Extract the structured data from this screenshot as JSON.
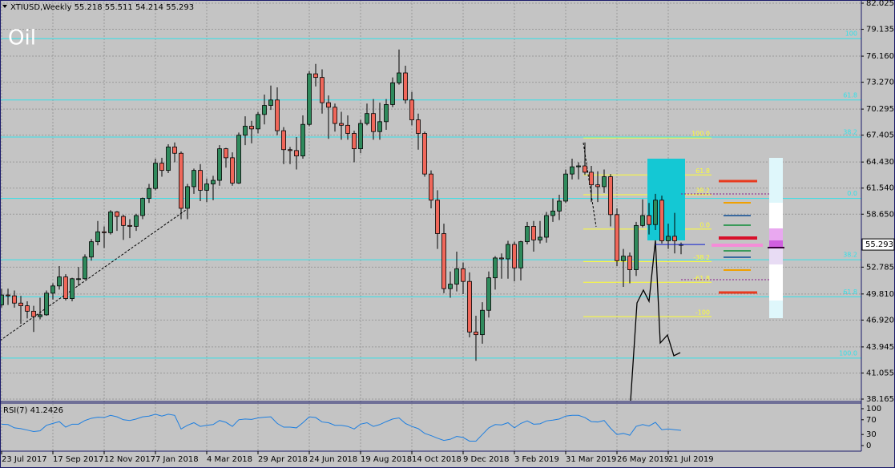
{
  "chart_data": {
    "type": "candlestick",
    "symbol": "XTIUSD,Weekly",
    "watermark": "Oil",
    "categories": [
      "23 Jul 2017",
      null,
      null,
      null,
      null,
      null,
      null,
      null,
      "17 Sep 2017",
      null,
      null,
      null,
      null,
      null,
      null,
      null,
      "12 Nov 2017",
      null,
      null,
      null,
      null,
      null,
      null,
      null,
      "7 Jan 2018",
      null,
      null,
      null,
      null,
      null,
      null,
      null,
      "4 Mar 2018",
      null,
      null,
      null,
      null,
      null,
      null,
      null,
      "29 Apr 2018",
      null,
      null,
      null,
      null,
      null,
      null,
      null,
      "24 Jun 2018",
      null,
      null,
      null,
      null,
      null,
      null,
      null,
      "19 Aug 2018",
      null,
      null,
      null,
      null,
      null,
      null,
      null,
      "14 Oct 2018",
      null,
      null,
      null,
      null,
      null,
      null,
      null,
      "9 Dec 2018",
      null,
      null,
      null,
      null,
      null,
      null,
      null,
      "3 Feb 2019",
      null,
      null,
      null,
      null,
      null,
      null,
      null,
      "31 Mar 2019",
      null,
      null,
      null,
      null,
      null,
      null,
      null,
      "26 May 2019",
      null,
      null,
      null,
      null,
      null,
      null,
      null,
      "21 Jul 2019",
      null,
      null
    ],
    "open": [
      48.6,
      49.7,
      49.6,
      48.8,
      48.5,
      47.9,
      47.3,
      47.5,
      49.9,
      50.7,
      51.7,
      49.3,
      51.5,
      51.5,
      53.9,
      55.6,
      56.7,
      56.6,
      58.9,
      58.4,
      57.4,
      57.3,
      58.5,
      60.4,
      61.5,
      64.3,
      63.5,
      66.1,
      65.4,
      59.3,
      61.7,
      63.5,
      61.3,
      62.0,
      62.4,
      65.9,
      64.9,
      62.1,
      67.4,
      68.4,
      68.1,
      69.7,
      70.7,
      71.3,
      67.9,
      65.8,
      65.7,
      65.1,
      68.6,
      74.2,
      73.8,
      71.0,
      70.5,
      68.7,
      68.5,
      67.6,
      65.9,
      68.7,
      69.8,
      67.8,
      68.9,
      70.8,
      73.2,
      74.3,
      71.3,
      69.1,
      67.6,
      63.1,
      60.2,
      56.5,
      50.4,
      50.9,
      52.6,
      51.2,
      45.6,
      45.3,
      48.0,
      51.6,
      53.8,
      53.7,
      55.3,
      52.7,
      55.6,
      57.3,
      55.8,
      56.1,
      58.5,
      59.0,
      60.1,
      63.1,
      63.9,
      64.0,
      63.3,
      61.9,
      61.7,
      62.8,
      58.6,
      53.5,
      54.0,
      52.5,
      57.4,
      58.5,
      57.5,
      60.2,
      55.7,
      56.2,
      55.218
    ],
    "high": [
      50.4,
      50.4,
      50.2,
      49.6,
      49.0,
      48.5,
      49.4,
      50.2,
      51.0,
      52.9,
      52.0,
      51.6,
      52.8,
      54.2,
      55.9,
      57.9,
      57.3,
      59.1,
      59.0,
      58.6,
      58.1,
      58.7,
      60.5,
      62.0,
      64.8,
      64.9,
      66.4,
      66.6,
      65.6,
      62.0,
      63.7,
      64.2,
      62.6,
      62.9,
      66.3,
      66.0,
      65.5,
      67.7,
      69.5,
      69.0,
      70.0,
      71.9,
      72.9,
      72.7,
      68.3,
      66.1,
      67.2,
      69.6,
      74.5,
      75.3,
      74.7,
      71.8,
      70.9,
      70.0,
      69.6,
      67.9,
      69.1,
      70.9,
      71.4,
      71.0,
      71.4,
      73.8,
      76.9,
      75.1,
      72.2,
      69.8,
      67.8,
      63.5,
      61.3,
      57.6,
      52.3,
      54.5,
      53.3,
      52.2,
      47.4,
      48.9,
      52.3,
      54.0,
      54.3,
      55.7,
      55.6,
      55.7,
      57.8,
      57.9,
      57.9,
      58.9,
      60.4,
      60.8,
      63.6,
      64.8,
      64.4,
      66.6,
      64.0,
      63.4,
      63.6,
      63.1,
      59.3,
      54.8,
      54.4,
      57.8,
      60.3,
      59.9,
      60.9,
      60.7,
      57.6,
      58.8,
      55.511
    ],
    "low": [
      48.3,
      48.6,
      48.3,
      46.5,
      47.1,
      45.6,
      47.0,
      47.4,
      49.2,
      50.3,
      49.1,
      49.0,
      50.7,
      51.4,
      53.5,
      55.2,
      54.9,
      56.4,
      56.8,
      55.8,
      56.0,
      56.8,
      58.1,
      59.9,
      61.3,
      62.8,
      63.2,
      64.4,
      58.1,
      58.1,
      60.9,
      60.1,
      60.0,
      60.2,
      61.8,
      63.8,
      61.8,
      62.0,
      66.3,
      66.5,
      67.6,
      68.6,
      70.2,
      67.4,
      64.2,
      64.2,
      63.6,
      64.8,
      68.4,
      72.8,
      69.8,
      67.0,
      67.8,
      66.9,
      66.9,
      64.4,
      65.4,
      68.5,
      66.9,
      66.9,
      68.0,
      70.5,
      73.0,
      70.9,
      68.5,
      65.8,
      62.8,
      59.3,
      54.8,
      49.9,
      49.4,
      50.1,
      49.8,
      45.0,
      42.4,
      44.3,
      47.2,
      50.3,
      51.5,
      51.5,
      51.2,
      51.3,
      55.3,
      54.5,
      55.4,
      55.5,
      57.8,
      58.0,
      59.9,
      62.5,
      62.5,
      63.0,
      60.0,
      60.0,
      61.0,
      57.3,
      52.9,
      50.6,
      51.0,
      51.8,
      57.2,
      56.4,
      56.9,
      55.4,
      54.8,
      54.3,
      54.214
    ],
    "close": [
      49.7,
      49.6,
      48.8,
      48.5,
      47.9,
      47.3,
      47.5,
      49.9,
      50.7,
      51.7,
      49.3,
      51.5,
      51.5,
      53.9,
      55.6,
      56.7,
      56.6,
      58.9,
      58.4,
      57.4,
      57.3,
      58.5,
      60.4,
      61.5,
      64.3,
      63.5,
      66.1,
      65.4,
      59.3,
      61.7,
      63.5,
      61.3,
      62.0,
      62.4,
      65.9,
      64.9,
      62.1,
      67.4,
      68.4,
      68.1,
      69.7,
      70.7,
      71.3,
      67.9,
      65.8,
      65.7,
      65.1,
      68.6,
      74.2,
      73.8,
      71.0,
      70.5,
      68.7,
      68.5,
      67.6,
      65.9,
      68.7,
      69.8,
      67.8,
      68.9,
      70.8,
      73.2,
      74.3,
      71.3,
      69.1,
      67.6,
      63.1,
      60.2,
      56.5,
      50.4,
      50.9,
      52.6,
      51.2,
      45.6,
      45.3,
      48.0,
      51.6,
      53.8,
      53.7,
      55.3,
      52.7,
      55.6,
      57.3,
      55.8,
      56.1,
      58.5,
      59.0,
      60.1,
      63.1,
      63.9,
      64.0,
      63.3,
      61.9,
      61.7,
      62.8,
      58.6,
      53.5,
      54.0,
      52.5,
      57.4,
      58.5,
      57.5,
      60.2,
      55.7,
      56.2,
      55.7,
      55.293
    ],
    "up_color": "#2f8a5c",
    "down_color": "#f0675a",
    "ylim": [
      38.165,
      82.025
    ],
    "yticks": [
      82.025,
      79.135,
      {
        "value": 76.16,
        "label": "76.160"
      },
      {
        "value": 73.27,
        "label": "73.270"
      },
      70.295,
      67.405,
      {
        "value": 64.43,
        "label": "64.430"
      },
      {
        "value": 61.54,
        "label": "61.540"
      },
      {
        "value": 58.65,
        "label": "58.650"
      },
      52.785,
      {
        "value": 49.81,
        "label": "49.810"
      },
      {
        "value": 46.92,
        "label": "46.920"
      },
      43.945,
      41.055,
      38.165
    ],
    "grid": true,
    "fib_color": "#33e0e8",
    "fib_levels": [
      {
        "value": 78.1,
        "label": "100"
      },
      {
        "value": 71.3,
        "label": "61.8"
      },
      {
        "value": 67.2,
        "label": "38.2"
      },
      {
        "value": 60.4,
        "label": "0.0"
      },
      {
        "value": 53.6,
        "label": "38.2"
      },
      {
        "value": 49.5,
        "label": "61.8"
      },
      {
        "value": 42.7,
        "label": "100.0"
      }
    ],
    "local_fib_color": "#ffff33",
    "local_fib_levels": [
      {
        "value": 67.1,
        "label": "100.0"
      },
      {
        "value": 63.0,
        "label": "61.8"
      },
      {
        "value": 60.8,
        "label": "38.2"
      },
      {
        "value": 57.0,
        "label": "0.0"
      },
      {
        "value": 53.4,
        "label": "-38.2"
      },
      {
        "value": 51.1,
        "label": "-61.8"
      },
      {
        "value": 47.3,
        "label": "-100"
      }
    ],
    "rsi": {
      "name": "RSI(7)",
      "color": "#1e7fe0",
      "ylim": [
        0,
        100
      ],
      "yticks": [
        100,
        70,
        30,
        0
      ],
      "values": [
        58,
        57,
        48,
        46,
        42,
        38,
        40,
        55,
        60,
        65,
        50,
        58,
        58,
        68,
        74,
        77,
        76,
        82,
        78,
        70,
        68,
        72,
        78,
        80,
        85,
        80,
        85,
        82,
        45,
        55,
        62,
        52,
        55,
        57,
        68,
        63,
        52,
        70,
        72,
        71,
        75,
        77,
        78,
        60,
        50,
        50,
        48,
        62,
        78,
        76,
        64,
        62,
        55,
        55,
        52,
        45,
        58,
        62,
        52,
        57,
        65,
        72,
        75,
        60,
        52,
        46,
        33,
        27,
        20,
        14,
        17,
        25,
        22,
        12,
        12,
        30,
        48,
        57,
        56,
        62,
        48,
        60,
        67,
        58,
        59,
        67,
        69,
        72,
        80,
        82,
        82,
        76,
        65,
        64,
        68,
        47,
        30,
        33,
        28,
        52,
        57,
        53,
        63,
        43,
        45,
        43,
        41.2426
      ]
    }
  }
}
